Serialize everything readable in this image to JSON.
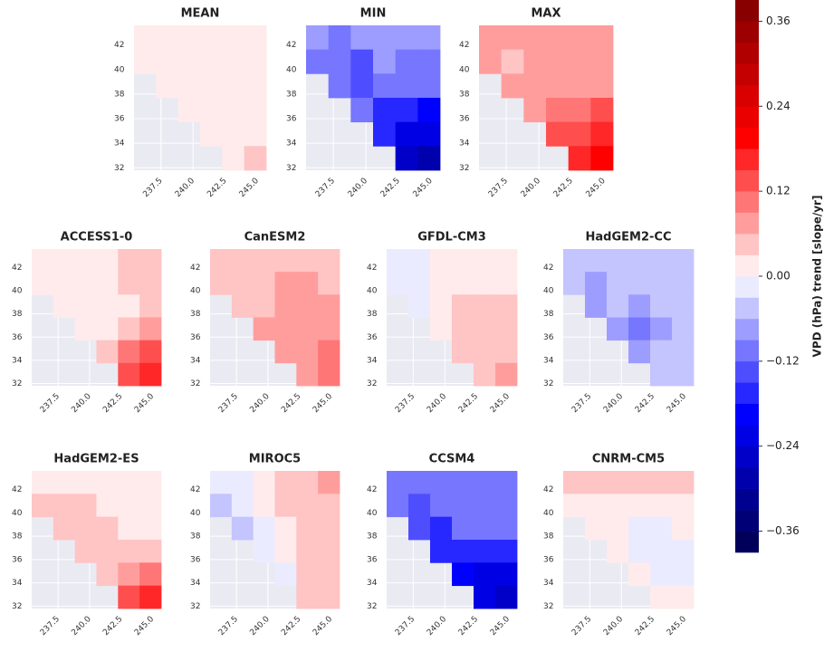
{
  "chart_data": [
    {
      "type": "heatmap",
      "title": "MEAN",
      "xlim": [
        235.4,
        245.7
      ],
      "ylim": [
        31.8,
        43.6
      ],
      "xticks": [
        237.5,
        {
          "value": 240,
          "label": "240.0"
        },
        242.5,
        {
          "value": 245,
          "label": "245.0"
        }
      ],
      "yticks": [
        32,
        34,
        36,
        38,
        40,
        42
      ],
      "values": [
        [
          0.02,
          0.02,
          0.02,
          0.02,
          0.02,
          0.02
        ],
        [
          0.0,
          0.02,
          0.02,
          0.02,
          0.02,
          0.02
        ],
        [
          null,
          0.0,
          0.02,
          0.02,
          0.02,
          0.02
        ],
        [
          null,
          null,
          0.0,
          0.02,
          0.02,
          0.02
        ],
        [
          null,
          null,
          null,
          0.02,
          0.02,
          0.02
        ],
        [
          null,
          null,
          null,
          null,
          0.02,
          0.05
        ]
      ]
    },
    {
      "type": "heatmap",
      "title": "MIN",
      "xlim": [
        235.4,
        245.7
      ],
      "ylim": [
        31.8,
        43.6
      ],
      "xticks": [
        237.5,
        {
          "value": 240,
          "label": "240.0"
        },
        242.5,
        {
          "value": 245,
          "label": "245.0"
        }
      ],
      "yticks": [
        32,
        34,
        36,
        38,
        40,
        42
      ],
      "values": [
        [
          -0.08,
          -0.1,
          -0.08,
          -0.08,
          -0.08,
          -0.08
        ],
        [
          -0.1,
          -0.12,
          -0.14,
          -0.08,
          -0.1,
          -0.1
        ],
        [
          null,
          -0.12,
          -0.14,
          -0.12,
          -0.1,
          -0.1
        ],
        [
          null,
          null,
          -0.12,
          -0.16,
          -0.18,
          -0.2
        ],
        [
          null,
          null,
          null,
          -0.18,
          -0.22,
          -0.24
        ],
        [
          null,
          null,
          null,
          null,
          -0.26,
          -0.3
        ]
      ]
    },
    {
      "type": "heatmap",
      "title": "MAX",
      "xlim": [
        235.4,
        245.7
      ],
      "ylim": [
        31.8,
        43.6
      ],
      "xticks": [
        237.5,
        {
          "value": 240,
          "label": "240.0"
        },
        242.5,
        {
          "value": 245,
          "label": "245.0"
        }
      ],
      "yticks": [
        32,
        34,
        36,
        38,
        40,
        42
      ],
      "values": [
        [
          0.08,
          0.08,
          0.08,
          0.08,
          0.08,
          0.08
        ],
        [
          0.08,
          0.06,
          0.08,
          0.08,
          0.08,
          0.08
        ],
        [
          null,
          0.08,
          0.08,
          0.08,
          0.08,
          0.08
        ],
        [
          null,
          null,
          0.08,
          0.1,
          0.1,
          0.12
        ],
        [
          null,
          null,
          null,
          0.12,
          0.14,
          0.15
        ],
        [
          null,
          null,
          null,
          null,
          0.16,
          0.2
        ]
      ]
    },
    {
      "type": "heatmap",
      "title": "ACCESS1-0",
      "xlim": [
        235.4,
        245.7
      ],
      "ylim": [
        31.8,
        43.6
      ],
      "xticks": [
        237.5,
        {
          "value": 240,
          "label": "240.0"
        },
        242.5,
        {
          "value": 245,
          "label": "245.0"
        }
      ],
      "yticks": [
        32,
        34,
        36,
        38,
        40,
        42
      ],
      "values": [
        [
          0.02,
          0.02,
          0.02,
          0.02,
          0.06,
          0.06
        ],
        [
          0.02,
          0.02,
          0.02,
          0.02,
          0.04,
          0.06
        ],
        [
          null,
          0.02,
          0.02,
          0.02,
          0.02,
          0.04
        ],
        [
          null,
          null,
          0.02,
          0.02,
          0.06,
          0.08
        ],
        [
          null,
          null,
          null,
          0.06,
          0.1,
          0.12
        ],
        [
          null,
          null,
          null,
          null,
          0.12,
          0.16
        ]
      ]
    },
    {
      "type": "heatmap",
      "title": "CanESM2",
      "xlim": [
        235.4,
        245.7
      ],
      "ylim": [
        31.8,
        43.6
      ],
      "xticks": [
        237.5,
        {
          "value": 240,
          "label": "240.0"
        },
        242.5,
        {
          "value": 245,
          "label": "245.0"
        }
      ],
      "yticks": [
        32,
        34,
        36,
        38,
        40,
        42
      ],
      "values": [
        [
          0.04,
          0.04,
          0.06,
          0.06,
          0.06,
          0.06
        ],
        [
          0.04,
          0.04,
          0.06,
          0.08,
          0.08,
          0.06
        ],
        [
          null,
          0.06,
          0.06,
          0.08,
          0.08,
          0.08
        ],
        [
          null,
          null,
          0.08,
          0.08,
          0.08,
          0.08
        ],
        [
          null,
          null,
          null,
          0.08,
          0.08,
          0.1
        ],
        [
          null,
          null,
          null,
          null,
          0.08,
          0.1
        ]
      ]
    },
    {
      "type": "heatmap",
      "title": "GFDL-CM3",
      "xlim": [
        235.4,
        245.7
      ],
      "ylim": [
        31.8,
        43.6
      ],
      "xticks": [
        237.5,
        {
          "value": 240,
          "label": "240.0"
        },
        242.5,
        {
          "value": 245,
          "label": "245.0"
        }
      ],
      "yticks": [
        32,
        34,
        36,
        38,
        40,
        42
      ],
      "values": [
        [
          -0.02,
          -0.02,
          0.0,
          0.02,
          0.02,
          0.02
        ],
        [
          -0.02,
          -0.02,
          0.02,
          0.02,
          0.02,
          0.02
        ],
        [
          null,
          -0.02,
          0.02,
          0.04,
          0.06,
          0.04
        ],
        [
          null,
          null,
          0.02,
          0.06,
          0.06,
          0.06
        ],
        [
          null,
          null,
          null,
          0.06,
          0.06,
          0.06
        ],
        [
          null,
          null,
          null,
          null,
          0.06,
          0.08
        ]
      ]
    },
    {
      "type": "heatmap",
      "title": "HadGEM2-CC",
      "xlim": [
        235.4,
        245.7
      ],
      "ylim": [
        31.8,
        43.6
      ],
      "xticks": [
        237.5,
        {
          "value": 240,
          "label": "240.0"
        },
        242.5,
        {
          "value": 245,
          "label": "245.0"
        }
      ],
      "yticks": [
        32,
        34,
        36,
        38,
        40,
        42
      ],
      "values": [
        [
          -0.06,
          -0.06,
          -0.06,
          -0.06,
          -0.06,
          -0.06
        ],
        [
          -0.06,
          -0.08,
          -0.06,
          -0.06,
          -0.06,
          -0.06
        ],
        [
          null,
          -0.08,
          -0.06,
          -0.08,
          -0.06,
          -0.06
        ],
        [
          null,
          null,
          -0.08,
          -0.1,
          -0.08,
          -0.06
        ],
        [
          null,
          null,
          null,
          -0.08,
          -0.06,
          -0.06
        ],
        [
          null,
          null,
          null,
          null,
          -0.06,
          -0.04
        ]
      ]
    },
    {
      "type": "heatmap",
      "title": "HadGEM2-ES",
      "xlim": [
        235.4,
        245.7
      ],
      "ylim": [
        31.8,
        43.6
      ],
      "xticks": [
        237.5,
        {
          "value": 240,
          "label": "240.0"
        },
        242.5,
        {
          "value": 245,
          "label": "245.0"
        }
      ],
      "yticks": [
        32,
        34,
        36,
        38,
        40,
        42
      ],
      "values": [
        [
          0.02,
          0.02,
          0.02,
          0.02,
          0.02,
          0.02
        ],
        [
          0.04,
          0.06,
          0.04,
          0.02,
          0.02,
          0.02
        ],
        [
          null,
          0.04,
          0.06,
          0.04,
          0.02,
          0.02
        ],
        [
          null,
          null,
          0.06,
          0.06,
          0.06,
          0.06
        ],
        [
          null,
          null,
          null,
          0.06,
          0.08,
          0.1
        ],
        [
          null,
          null,
          null,
          null,
          0.12,
          0.16
        ]
      ]
    },
    {
      "type": "heatmap",
      "title": "MIROC5",
      "xlim": [
        235.4,
        245.7
      ],
      "ylim": [
        31.8,
        43.6
      ],
      "xticks": [
        237.5,
        {
          "value": 240,
          "label": "240.0"
        },
        242.5,
        {
          "value": 245,
          "label": "245.0"
        }
      ],
      "yticks": [
        32,
        34,
        36,
        38,
        40,
        42
      ],
      "values": [
        [
          -0.02,
          -0.02,
          0.02,
          0.04,
          0.06,
          0.08
        ],
        [
          -0.04,
          -0.02,
          0.02,
          0.04,
          0.04,
          0.06
        ],
        [
          null,
          -0.04,
          -0.02,
          0.02,
          0.04,
          0.04
        ],
        [
          null,
          null,
          -0.02,
          0.02,
          0.04,
          0.04
        ],
        [
          null,
          null,
          null,
          -0.02,
          0.04,
          0.06
        ],
        [
          null,
          null,
          null,
          null,
          0.04,
          0.06
        ]
      ]
    },
    {
      "type": "heatmap",
      "title": "CCSM4",
      "xlim": [
        235.4,
        245.7
      ],
      "ylim": [
        31.8,
        43.6
      ],
      "xticks": [
        237.5,
        {
          "value": 240,
          "label": "240.0"
        },
        242.5,
        {
          "value": 245,
          "label": "245.0"
        }
      ],
      "yticks": [
        32,
        34,
        36,
        38,
        40,
        42
      ],
      "values": [
        [
          -0.1,
          -0.12,
          -0.1,
          -0.1,
          -0.1,
          -0.1
        ],
        [
          -0.12,
          -0.14,
          -0.12,
          -0.1,
          -0.1,
          -0.1
        ],
        [
          null,
          -0.14,
          -0.16,
          -0.12,
          -0.12,
          -0.12
        ],
        [
          null,
          null,
          -0.16,
          -0.18,
          -0.16,
          -0.16
        ],
        [
          null,
          null,
          null,
          -0.2,
          -0.22,
          -0.22
        ],
        [
          null,
          null,
          null,
          null,
          -0.24,
          -0.26
        ]
      ]
    },
    {
      "type": "heatmap",
      "title": "CNRM-CM5",
      "xlim": [
        235.4,
        245.7
      ],
      "ylim": [
        31.8,
        43.6
      ],
      "xticks": [
        237.5,
        {
          "value": 240,
          "label": "240.0"
        },
        242.5,
        {
          "value": 245,
          "label": "245.0"
        }
      ],
      "yticks": [
        32,
        34,
        36,
        38,
        40,
        42
      ],
      "values": [
        [
          0.04,
          0.06,
          0.04,
          0.04,
          0.06,
          0.06
        ],
        [
          0.02,
          0.02,
          0.02,
          0.02,
          0.02,
          0.02
        ],
        [
          null,
          0.02,
          0.0,
          -0.02,
          -0.02,
          0.0
        ],
        [
          null,
          null,
          0.0,
          -0.02,
          -0.02,
          -0.02
        ],
        [
          null,
          null,
          null,
          0.0,
          -0.02,
          -0.02
        ],
        [
          null,
          null,
          null,
          null,
          0.0,
          0.0
        ]
      ]
    }
  ],
  "colorbar": {
    "label": "VPD (hPa) trend [slope/yr]",
    "lim": [
      -0.39,
      0.39
    ],
    "levels": 26,
    "cmap": "seismic",
    "ticks": [
      {
        "value": -0.36,
        "label": "−0.36"
      },
      {
        "value": -0.24,
        "label": "−0.24"
      },
      {
        "value": -0.12,
        "label": "−0.12"
      },
      {
        "value": 0,
        "label": "0.00"
      },
      0.12,
      0.24,
      0.36
    ]
  }
}
